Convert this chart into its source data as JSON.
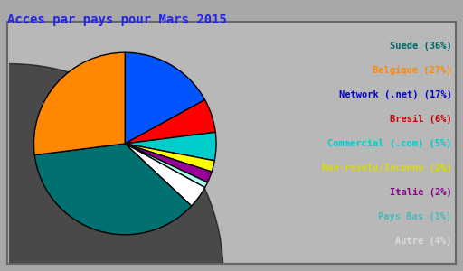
{
  "title": "Acces par pays pour Mars 2015",
  "title_color": "#2222EE",
  "background_color": "#A8A8A8",
  "inner_bg_color": "#B8B8B8",
  "labels": [
    "Suede",
    "Belgique",
    "Network (.net)",
    "Bresil",
    "Commercial (.com)",
    "Non-resolu/Inconnu",
    "Italie",
    "Pays Bas",
    "Autre"
  ],
  "pct_labels": [
    "(36%)",
    "(27%)",
    "(17%)",
    "(6%)",
    "(5%)",
    "(2%)",
    "(2%)",
    "(1%)",
    "(4%)"
  ],
  "values": [
    36,
    27,
    17,
    6,
    5,
    2,
    2,
    1,
    4
  ],
  "pie_colors": [
    "#007070",
    "#FF8800",
    "#0055FF",
    "#FF0000",
    "#00CCCC",
    "#FFFF00",
    "#990099",
    "#AAFFEE",
    "#FFFFFF"
  ],
  "legend_text_colors": [
    "#006666",
    "#FF8800",
    "#0000CC",
    "#CC0000",
    "#00CCCC",
    "#DDDD00",
    "#880088",
    "#44BBBB",
    "#DDDDDD"
  ],
  "start_angle": 90,
  "pie_order": [
    2,
    0,
    1,
    3,
    4,
    5,
    6,
    7,
    8
  ]
}
